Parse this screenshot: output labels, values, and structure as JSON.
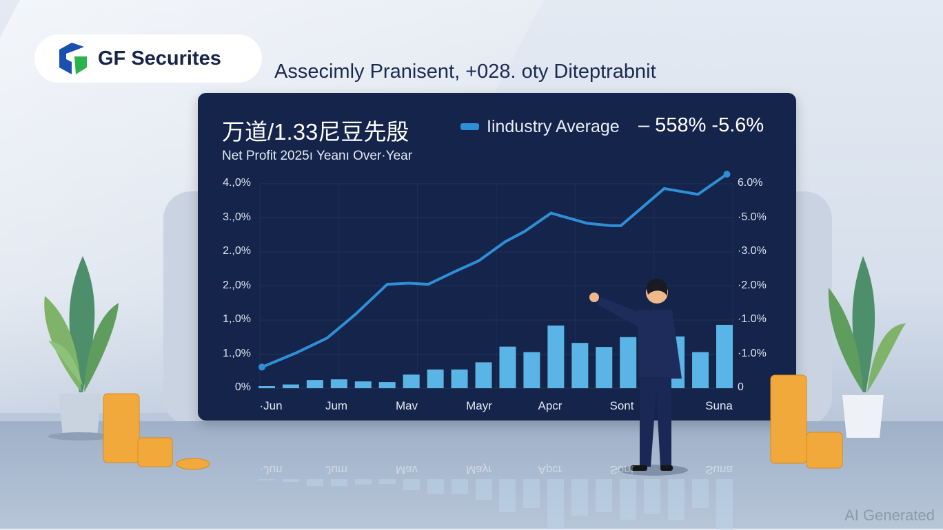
{
  "brand": {
    "name": "GF Securites",
    "logo_colors": [
      "#1a4fb0",
      "#2bb24c"
    ]
  },
  "headline": "Assecimly Pranisent, +028. oty Diteptrabnit",
  "panel": {
    "title": "万道/1.33尼豆先殷",
    "subtitle": "Net Profit 2025ı Yeanı Over·Year",
    "legend_label": "Iindustry Average",
    "legend_value": "– 558% -5.6%"
  },
  "chart_data": {
    "type": "bar+line",
    "title": "万道/1.33尼豆先殷",
    "subtitle": "Net Profit 2025ı Yeanı Over·Year",
    "left_ticks": [
      "0%",
      "1.,0%",
      "1,.0%",
      "2.,0%",
      "2.,0%",
      "3.,0%",
      "4.,0%"
    ],
    "right_ticks": [
      "0",
      "·1.0%",
      "·1.0%",
      "·2.0%",
      "·3.0%",
      "·5.0%",
      "6.0%"
    ],
    "x_tick_labels": [
      "·Jun",
      "Jum",
      "Mav",
      "Mayr",
      "Apcr",
      "Sont",
      "Suna"
    ],
    "level_range": [
      0,
      6
    ],
    "grid": true,
    "bar_color": "#5ab4e6",
    "line_color": "#2f8fd6",
    "bars": [
      0.06,
      0.11,
      0.24,
      0.26,
      0.2,
      0.18,
      0.4,
      0.55,
      0.55,
      0.76,
      1.22,
      1.06,
      1.84,
      1.33,
      1.21,
      1.5,
      1.3,
      1.52,
      1.06,
      1.86
    ],
    "line": {
      "x": [
        -0.2,
        1.2,
        2.5,
        3.7,
        5,
        5.9,
        6.7,
        7.8,
        8.8,
        9.9,
        10.7,
        11.8,
        13.3,
        14.3,
        14.7,
        16.5,
        17.9,
        19.1
      ],
      "y": [
        0.62,
        1.03,
        1.47,
        2.18,
        3.05,
        3.08,
        3.05,
        3.42,
        3.74,
        4.3,
        4.6,
        5.14,
        4.84,
        4.77,
        4.77,
        5.86,
        5.69,
        6.28
      ]
    }
  },
  "reflection_labels": [
    "·Jun",
    "Jum",
    "Mav",
    "Mayr",
    "Apcr",
    "Sont",
    "Suna"
  ],
  "watermark": "AI Generated"
}
